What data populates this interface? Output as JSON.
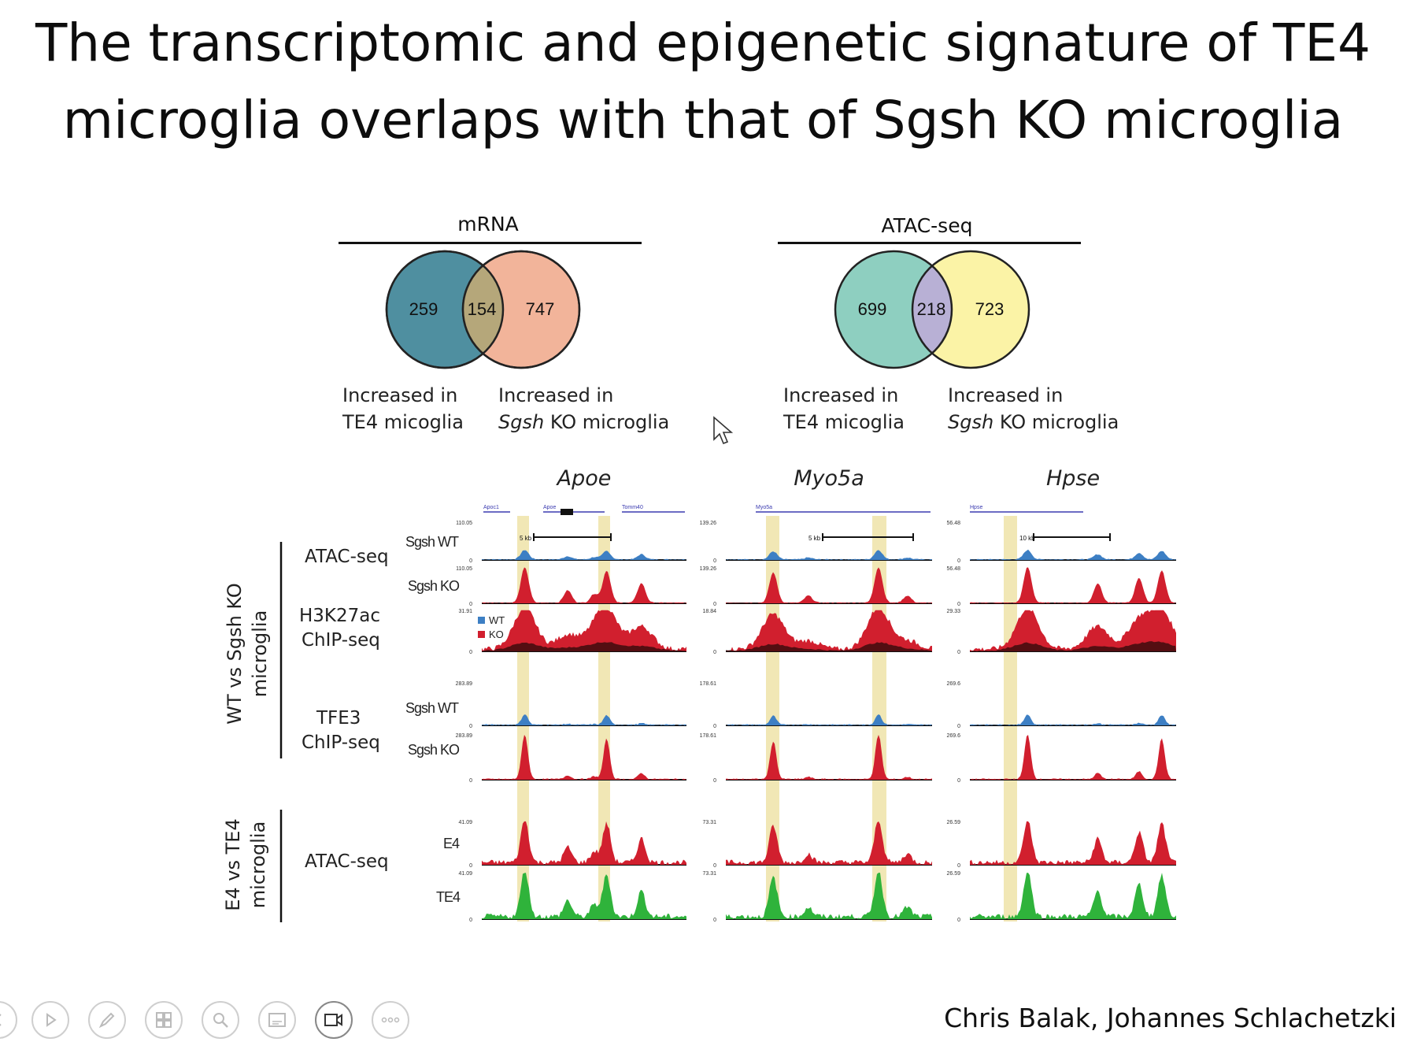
{
  "slide": {
    "title_line1": "The transcriptomic and epigenetic signature of TE4",
    "title_line2": "microglia overlaps with that of Sgsh KO microglia",
    "credit": "Chris Balak, Johannes Schlachetzki"
  },
  "venn": [
    {
      "heading": "mRNA",
      "left_value": "259",
      "overlap_value": "154",
      "right_value": "747",
      "left_color": "#4f8fa0",
      "right_color": "#f2b49a",
      "overlap_color": "#b5a77a",
      "left_label_line1": "Increased in",
      "left_label_line2": "TE4 micoglia",
      "right_label_line1": "Increased in",
      "right_label_italic": "Sgsh",
      "right_label_line2": " KO microglia"
    },
    {
      "heading": "ATAC-seq",
      "left_value": "699",
      "overlap_value": "218",
      "right_value": "723",
      "left_color": "#8ecfc0",
      "right_color": "#fbf3a6",
      "overlap_color": "#b8b0d5",
      "left_label_line1": "Increased in",
      "left_label_line2": "TE4 micoglia",
      "right_label_line1": "Increased in",
      "right_label_italic": "Sgsh",
      "right_label_line2": " KO microglia"
    }
  ],
  "genome": {
    "genes": [
      "Apoe",
      "Myo5a",
      "Hpse"
    ],
    "group_labels": {
      "group1_line1": "WT vs Sgsh KO",
      "group1_line2": "microglia",
      "group2_line1": "E4 vs TE4",
      "group2_line2": "microglia"
    },
    "assay_labels": {
      "atac1": "ATAC-seq",
      "h3k27ac_line1": "H3K27ac",
      "h3k27ac_line2": "ChIP-seq",
      "tfe3_line1": "TFE3",
      "tfe3_line2": "ChIP-seq",
      "atac2": "ATAC-seq"
    },
    "track_labels": {
      "sgsh_wt_1": "Sgsh WT",
      "sgsh_ko_1": "Sgsh KO",
      "sgsh_wt_2": "Sgsh WT",
      "sgsh_ko_2": "Sgsh KO",
      "e4": "E4",
      "te4": "TE4"
    },
    "legend": {
      "wt": "WT",
      "ko": "KO",
      "wt_color": "#3d7fc4",
      "ko_color": "#d11f2e"
    },
    "scales": {
      "apoe": [
        "110.05",
        "110.05",
        "31.91",
        "283.89",
        "283.89",
        "41.09",
        "41.09"
      ],
      "myo5a": [
        "139.26",
        "139.26",
        "18.84",
        "178.61",
        "178.61",
        "73.31",
        "73.31"
      ],
      "hpse": [
        "56.48",
        "56.48",
        "29.33",
        "269.6",
        "269.6",
        "26.59",
        "26.59"
      ]
    },
    "zero": "0",
    "scalebars": [
      "5 kb",
      "5 kb",
      "10 kb"
    ],
    "gene_track_names": {
      "apoe_left": "Apoc1",
      "apoe_mid": "Apoe",
      "apoe_right": "Tomm40",
      "myo5a": "Myo5a",
      "hpse": "Hpse"
    },
    "highlight_color": "#efe3a8"
  },
  "toolbar": {
    "icons": [
      "prev-icon",
      "play-icon",
      "pen-icon",
      "slides-icon",
      "zoom-icon",
      "subtitles-icon",
      "camera-icon",
      "more-icon"
    ]
  }
}
